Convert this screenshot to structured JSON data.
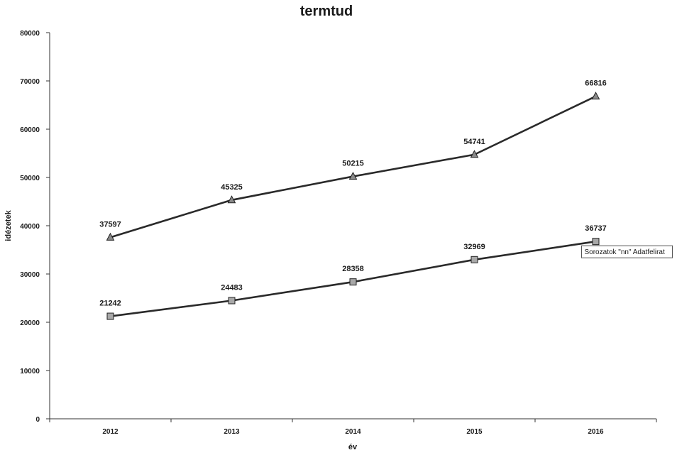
{
  "chart_data": {
    "type": "line",
    "title": "termtud",
    "xlabel": "év",
    "ylabel": "idézetek",
    "categories": [
      "2012",
      "2013",
      "2014",
      "2015",
      "2016"
    ],
    "ylim": [
      0,
      80000
    ],
    "yticks": [
      0,
      10000,
      20000,
      30000,
      40000,
      50000,
      60000,
      70000,
      80000
    ],
    "grid": false,
    "series": [
      {
        "marker": "triangle",
        "color": "#2a2a2a",
        "marker_color": "#8a8a8a",
        "values": [
          37597,
          45325,
          50215,
          54741,
          66816
        ]
      },
      {
        "marker": "square",
        "color": "#2a2a2a",
        "marker_color": "#a8a8a8",
        "values": [
          21242,
          24483,
          28358,
          32969,
          36737
        ]
      }
    ],
    "tooltip": {
      "text": "Sorozatok \"nn\" Adatfelirat",
      "series_index": 1,
      "point_index": 4
    }
  }
}
